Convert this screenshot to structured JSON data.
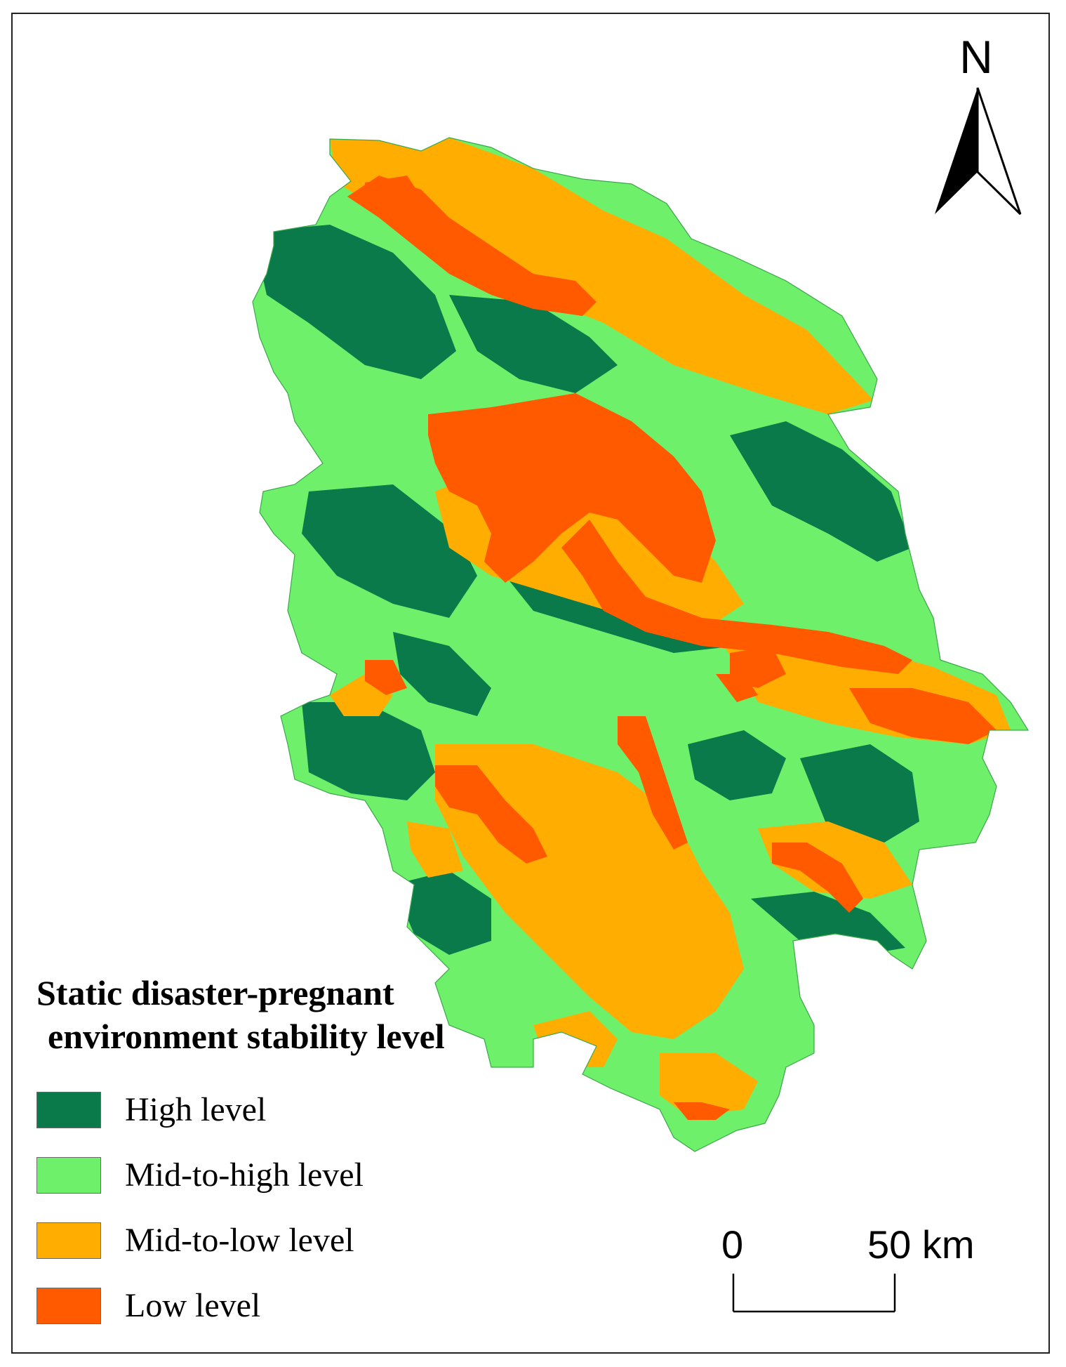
{
  "compass": {
    "label": "N"
  },
  "legend": {
    "title_line1": "Static disaster-pregnant",
    "title_line2": "environment  stability level",
    "items": [
      {
        "label": "High level",
        "color": "#0a7a4a"
      },
      {
        "label": "Mid-to-high level",
        "color": "#6ff06a"
      },
      {
        "label": "Mid-to-low level",
        "color": "#ffad00"
      },
      {
        "label": "Low level",
        "color": "#ff5a00"
      }
    ]
  },
  "scale_bar": {
    "start_label": "0",
    "end_label": "50 km"
  },
  "map_colors": {
    "high": "#0a7a4a",
    "mid_high": "#6ff06a",
    "mid_low": "#ffad00",
    "low": "#ff5a00"
  }
}
